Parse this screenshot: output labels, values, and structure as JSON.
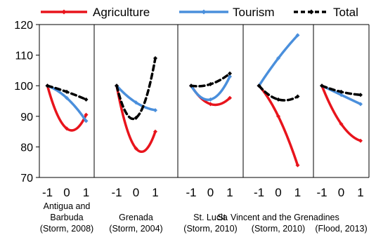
{
  "chart_data": {
    "type": "line",
    "title": "",
    "ylabel": "",
    "ylim": [
      70,
      120
    ],
    "yticks": [
      70,
      80,
      90,
      100,
      110,
      120
    ],
    "x": [
      -1,
      0,
      1
    ],
    "x_tick_labels": [
      "-1",
      "0",
      "1"
    ],
    "grid": false,
    "legend_position": "top",
    "colors": {
      "agriculture": "#e8141c",
      "tourism": "#4a8fdc",
      "total": "#000000"
    },
    "series": [
      {
        "key": "agriculture",
        "name": "Agriculture",
        "style": "solid"
      },
      {
        "key": "tourism",
        "name": "Tourism",
        "style": "solid"
      },
      {
        "key": "total",
        "name": "Total",
        "style": "dashed"
      }
    ],
    "panels": [
      {
        "label_lines": [
          "Antigua and",
          "Barbuda",
          "(Storm, 2008)"
        ],
        "agriculture": [
          100,
          86,
          90.5
        ],
        "tourism": [
          100,
          96,
          88.5
        ],
        "total": [
          100,
          98,
          95.5
        ]
      },
      {
        "label_lines": [
          "Grenada",
          "(Storm, 2004)"
        ],
        "agriculture": [
          100,
          79.5,
          85
        ],
        "tourism": [
          100,
          94.5,
          92
        ],
        "total": [
          100,
          89.5,
          109
        ]
      },
      {
        "label_lines": [
          "St. Lucia",
          "(Storm, 2010)"
        ],
        "agriculture": [
          100,
          94,
          96
        ],
        "tourism": [
          100,
          95.5,
          103
        ],
        "total": [
          100,
          100.5,
          104
        ]
      },
      {
        "label_lines": [
          "St. Vincent and the Grenadines",
          "(Storm, 2010)"
        ],
        "agriculture": [
          100,
          90,
          74
        ],
        "tourism": [
          100,
          109,
          116.5
        ],
        "total": [
          100,
          95.5,
          96.5
        ]
      },
      {
        "label_lines": [
          "(Flood, 2013)"
        ],
        "agriculture": [
          100,
          87.5,
          82
        ],
        "tourism": [
          100,
          97,
          94
        ],
        "total": [
          100,
          98,
          97
        ]
      }
    ]
  }
}
